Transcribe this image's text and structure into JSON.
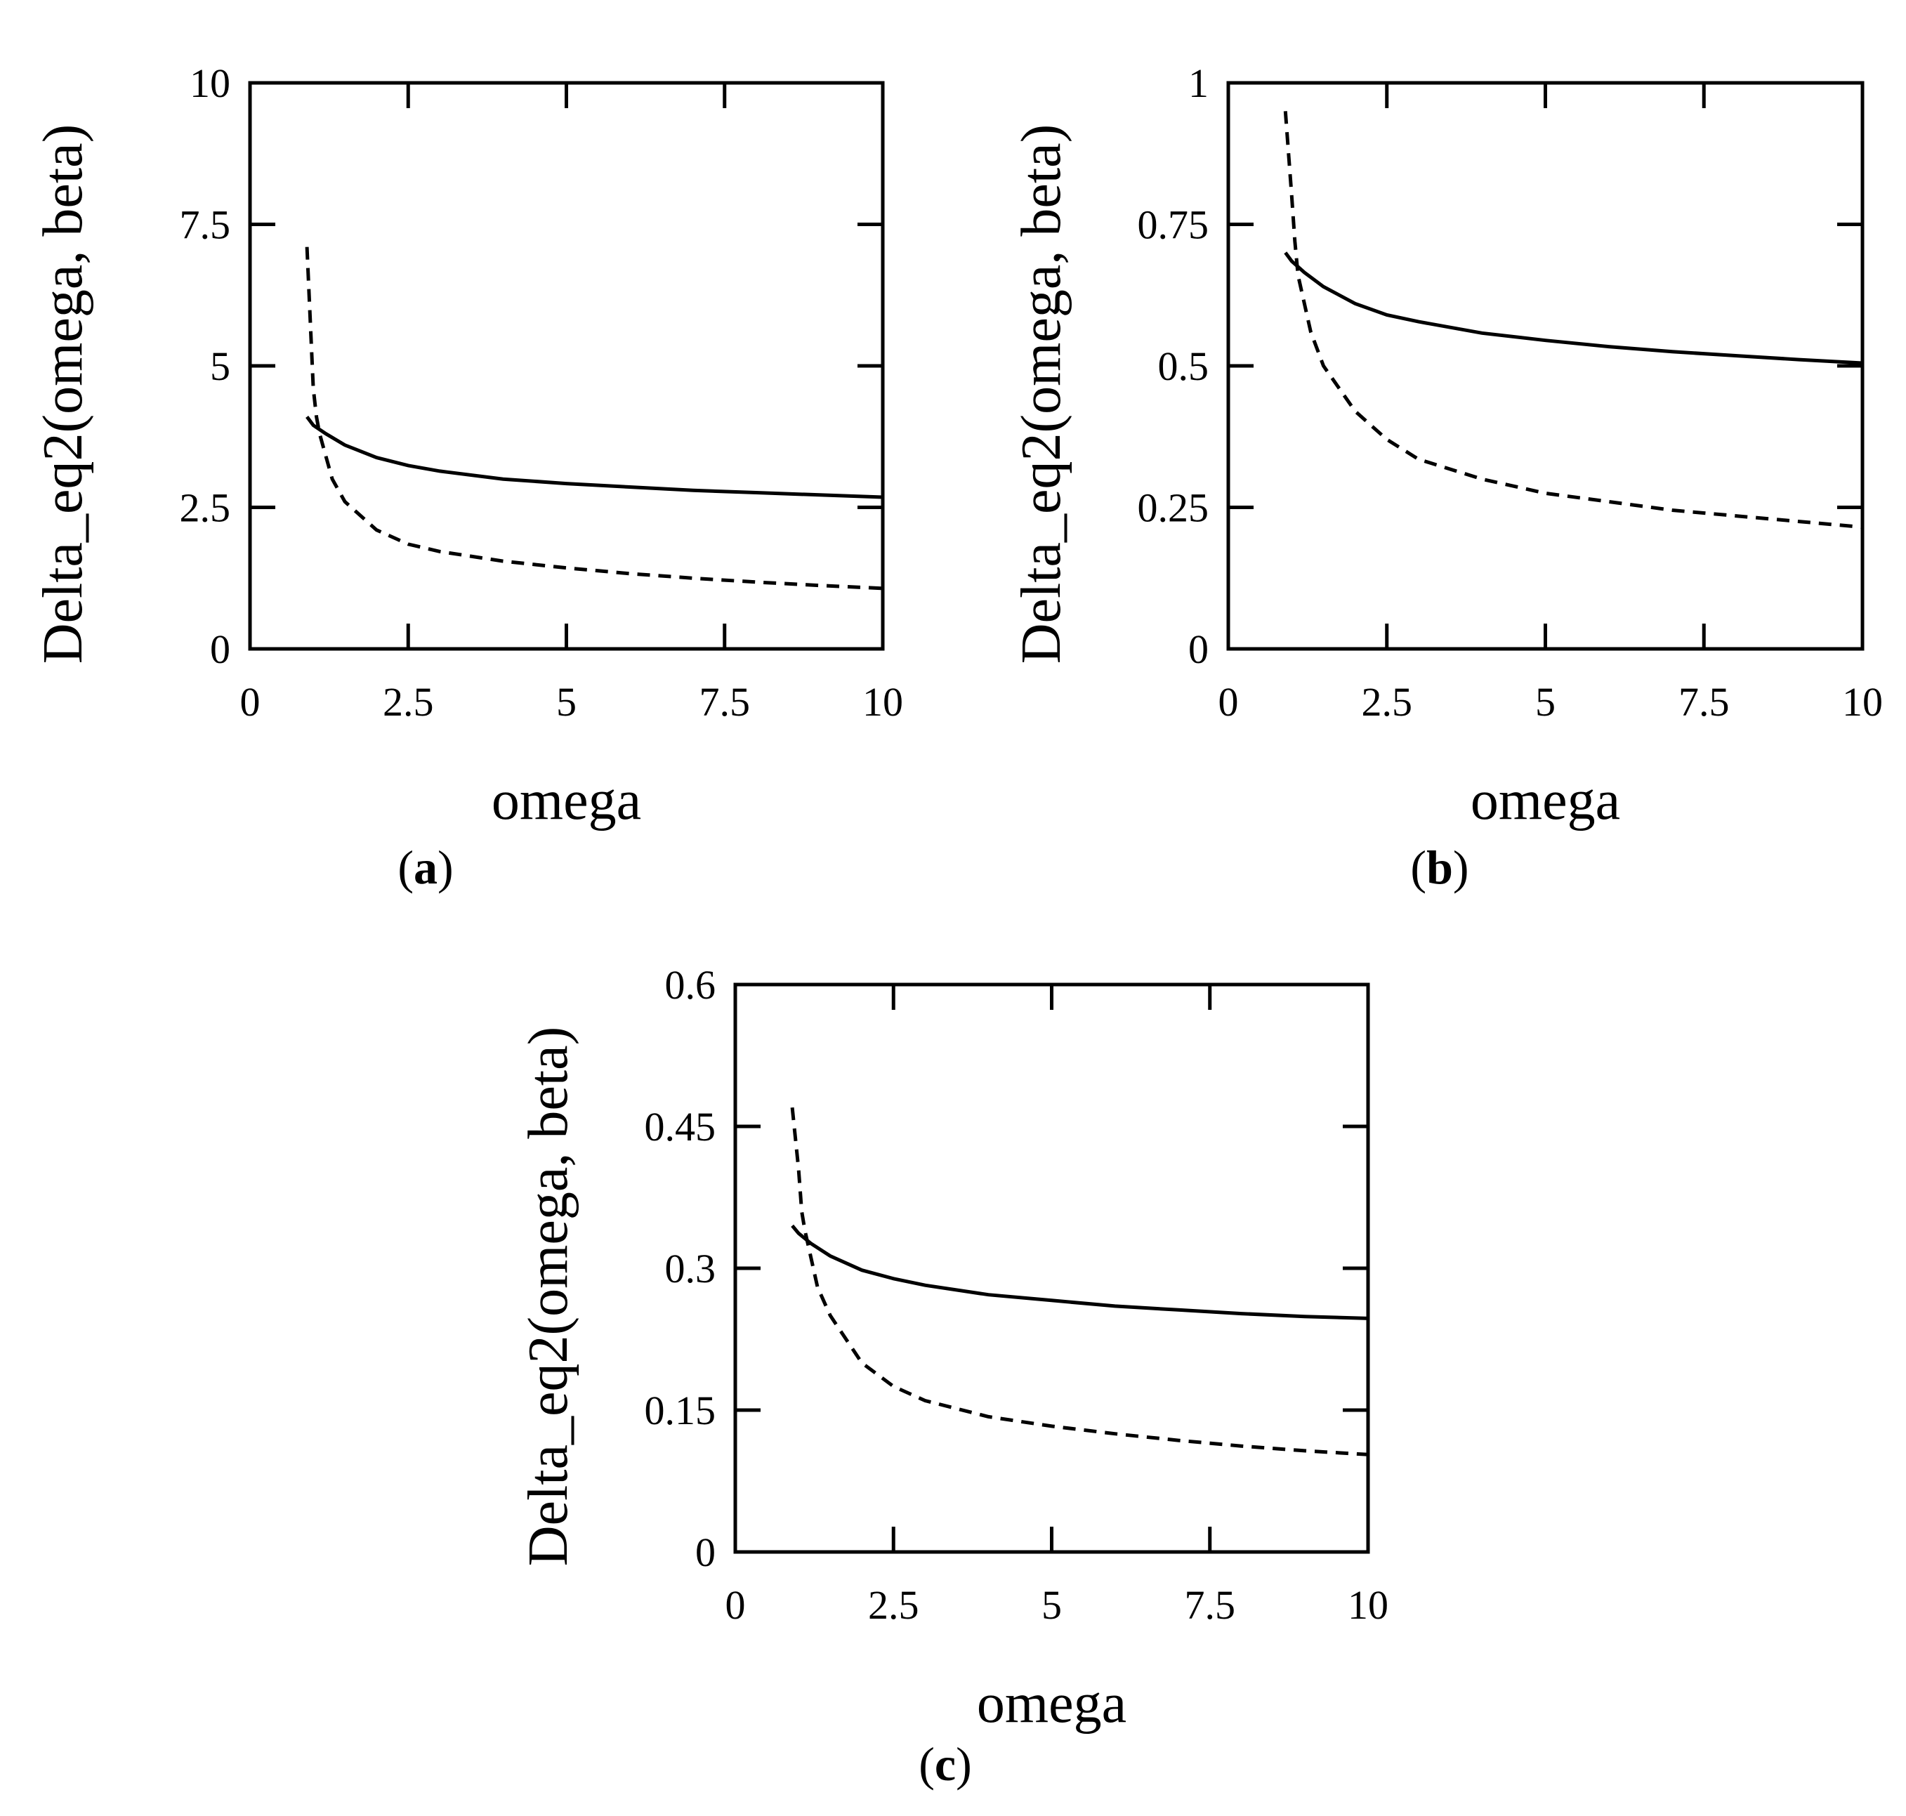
{
  "chart_data": [
    {
      "type": "line",
      "panel_label": "a",
      "xlabel": "omega",
      "ylabel": "Delta_eq2(omega, beta)",
      "xlim": [
        0,
        10
      ],
      "ylim": [
        0,
        10
      ],
      "xticks": [
        "0",
        "2.5",
        "5",
        "7.5",
        "10"
      ],
      "yticks": [
        "0",
        "2.5",
        "5",
        "7.5",
        "10"
      ],
      "xtick_values": [
        0,
        2.5,
        5,
        7.5,
        10
      ],
      "ytick_values": [
        0,
        2.5,
        5,
        7.5,
        10
      ],
      "series": [
        {
          "name": "solid",
          "style": "solid",
          "x": [
            0.9,
            1.0,
            1.2,
            1.5,
            2.0,
            2.5,
            3.0,
            4.0,
            5.0,
            6.0,
            7.0,
            8.0,
            9.0,
            10.0
          ],
          "y": [
            4.1,
            3.95,
            3.8,
            3.6,
            3.38,
            3.24,
            3.14,
            3.0,
            2.92,
            2.86,
            2.8,
            2.76,
            2.72,
            2.68
          ]
        },
        {
          "name": "dashed",
          "style": "dashed",
          "x": [
            0.9,
            1.0,
            1.05,
            1.1,
            1.3,
            1.5,
            2.0,
            2.5,
            3.0,
            4.0,
            5.0,
            6.0,
            7.0,
            8.0,
            9.0,
            10.0
          ],
          "y": [
            7.1,
            4.6,
            4.1,
            3.8,
            3.0,
            2.6,
            2.1,
            1.85,
            1.72,
            1.55,
            1.43,
            1.33,
            1.25,
            1.18,
            1.12,
            1.07
          ]
        }
      ]
    },
    {
      "type": "line",
      "panel_label": "b",
      "xlabel": "omega",
      "ylabel": "Delta_eq2(omega, beta)",
      "xlim": [
        0,
        10
      ],
      "ylim": [
        0,
        1
      ],
      "xticks": [
        "0",
        "2.5",
        "5",
        "7.5",
        "10"
      ],
      "yticks": [
        "0",
        "0.25",
        "0.5",
        "0.75",
        "1"
      ],
      "xtick_values": [
        0,
        2.5,
        5,
        7.5,
        10
      ],
      "ytick_values": [
        0,
        0.25,
        0.5,
        0.75,
        1
      ],
      "series": [
        {
          "name": "solid",
          "style": "solid",
          "x": [
            0.9,
            1.0,
            1.2,
            1.5,
            2.0,
            2.5,
            3.0,
            4.0,
            5.0,
            6.0,
            7.0,
            8.0,
            9.0,
            10.0
          ],
          "y": [
            0.7,
            0.685,
            0.665,
            0.64,
            0.61,
            0.59,
            0.578,
            0.558,
            0.545,
            0.534,
            0.525,
            0.518,
            0.511,
            0.505
          ]
        },
        {
          "name": "dashed",
          "style": "dashed",
          "x": [
            0.9,
            1.0,
            1.05,
            1.1,
            1.3,
            1.5,
            2.0,
            2.5,
            3.0,
            4.0,
            5.0,
            6.0,
            7.0,
            8.0,
            9.0,
            10.0
          ],
          "y": [
            0.95,
            0.8,
            0.72,
            0.66,
            0.56,
            0.5,
            0.42,
            0.37,
            0.335,
            0.3,
            0.275,
            0.26,
            0.245,
            0.235,
            0.225,
            0.215
          ]
        }
      ]
    },
    {
      "type": "line",
      "panel_label": "c",
      "xlabel": "omega",
      "ylabel": "Delta_eq2(omega, beta)",
      "xlim": [
        0,
        10
      ],
      "ylim": [
        0,
        0.6
      ],
      "xticks": [
        "0",
        "2.5",
        "5",
        "7.5",
        "10"
      ],
      "yticks": [
        "0",
        "0.15",
        "0.3",
        "0.45",
        "0.6"
      ],
      "xtick_values": [
        0,
        2.5,
        5,
        7.5,
        10
      ],
      "ytick_values": [
        0,
        0.15,
        0.3,
        0.45,
        0.6
      ],
      "series": [
        {
          "name": "solid",
          "style": "solid",
          "x": [
            0.9,
            1.0,
            1.2,
            1.5,
            2.0,
            2.5,
            3.0,
            4.0,
            5.0,
            6.0,
            7.0,
            8.0,
            9.0,
            10.0
          ],
          "y": [
            0.345,
            0.337,
            0.326,
            0.313,
            0.298,
            0.289,
            0.282,
            0.272,
            0.266,
            0.26,
            0.256,
            0.252,
            0.249,
            0.247
          ]
        },
        {
          "name": "dashed",
          "style": "dashed",
          "x": [
            0.9,
            1.0,
            1.05,
            1.1,
            1.3,
            1.5,
            2.0,
            2.5,
            3.0,
            4.0,
            5.0,
            6.0,
            7.0,
            8.0,
            9.0,
            10.0
          ],
          "y": [
            0.47,
            0.405,
            0.36,
            0.34,
            0.28,
            0.25,
            0.2,
            0.175,
            0.16,
            0.143,
            0.133,
            0.125,
            0.118,
            0.112,
            0.107,
            0.103
          ]
        }
      ]
    }
  ]
}
